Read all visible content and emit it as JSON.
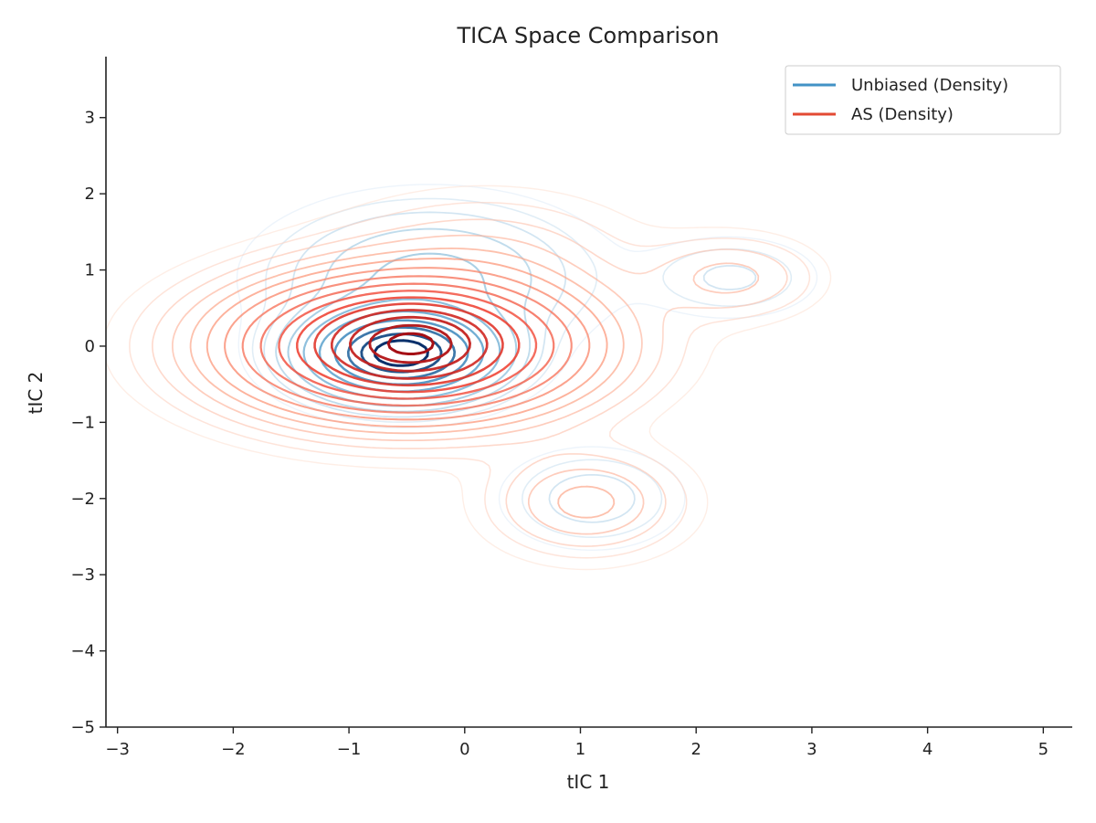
{
  "chart_data": {
    "type": "contour",
    "title": "TICA Space Comparison",
    "xlabel": "tIC 1",
    "ylabel": "tIC 2",
    "xlim": [
      -3.1,
      5.25
    ],
    "ylim": [
      -5,
      3.8
    ],
    "xticks": [
      -3,
      -2,
      -1,
      0,
      1,
      2,
      3,
      4,
      5
    ],
    "yticks": [
      -5,
      -4,
      -3,
      -2,
      -1,
      0,
      1,
      2,
      3
    ],
    "xtick_labels": [
      "−3",
      "−2",
      "−1",
      "0",
      "1",
      "2",
      "3",
      "4",
      "5"
    ],
    "ytick_labels": [
      "−5",
      "−4",
      "−3",
      "−2",
      "−1",
      "0",
      "1",
      "2",
      "3"
    ],
    "grid": false,
    "legend_position": "top-right",
    "series": [
      {
        "name": "Unbiased (Density)",
        "legend_color": "#4292c6",
        "colormap": [
          "#deebf7",
          "#9ecae1",
          "#4292c6",
          "#08306b"
        ],
        "components": [
          {
            "mean": [
              -0.55,
              -0.1
            ],
            "std": [
              0.45,
              0.32
            ],
            "weight": 1.0
          },
          {
            "mean": [
              -0.3,
              0.9
            ],
            "std": [
              0.75,
              0.55
            ],
            "weight": 0.12
          },
          {
            "mean": [
              1.1,
              -2.0
            ],
            "std": [
              0.45,
              0.38
            ],
            "weight": 0.05
          },
          {
            "mean": [
              2.3,
              0.9
            ],
            "std": [
              0.45,
              0.32
            ],
            "weight": 0.04
          }
        ],
        "levels": [
          0.01,
          0.02,
          0.035,
          0.06,
          0.1,
          0.18,
          0.3,
          0.45,
          0.6,
          0.75,
          0.88
        ]
      },
      {
        "name": "AS (Density)",
        "legend_color": "#e34a33",
        "colormap": [
          "#fee0d2",
          "#fc9272",
          "#ef3b2c",
          "#a50f15"
        ],
        "components": [
          {
            "mean": [
              -0.5,
              0.0
            ],
            "std": [
              0.9,
              0.55
            ],
            "weight": 1.0
          },
          {
            "mean": [
              -0.45,
              0.05
            ],
            "std": [
              0.4,
              0.3
            ],
            "weight": 0.45
          },
          {
            "mean": [
              1.05,
              -2.05
            ],
            "std": [
              0.5,
              0.42
            ],
            "weight": 0.13
          },
          {
            "mean": [
              2.3,
              0.9
            ],
            "std": [
              0.45,
              0.33
            ],
            "weight": 0.09
          },
          {
            "mean": [
              0.2,
              1.25
            ],
            "std": [
              0.8,
              0.5
            ],
            "weight": 0.06
          }
        ],
        "levels": [
          0.01,
          0.02,
          0.035,
          0.055,
          0.08,
          0.11,
          0.15,
          0.2,
          0.26,
          0.33,
          0.41,
          0.5,
          0.6,
          0.72,
          0.85,
          0.95
        ]
      }
    ]
  }
}
